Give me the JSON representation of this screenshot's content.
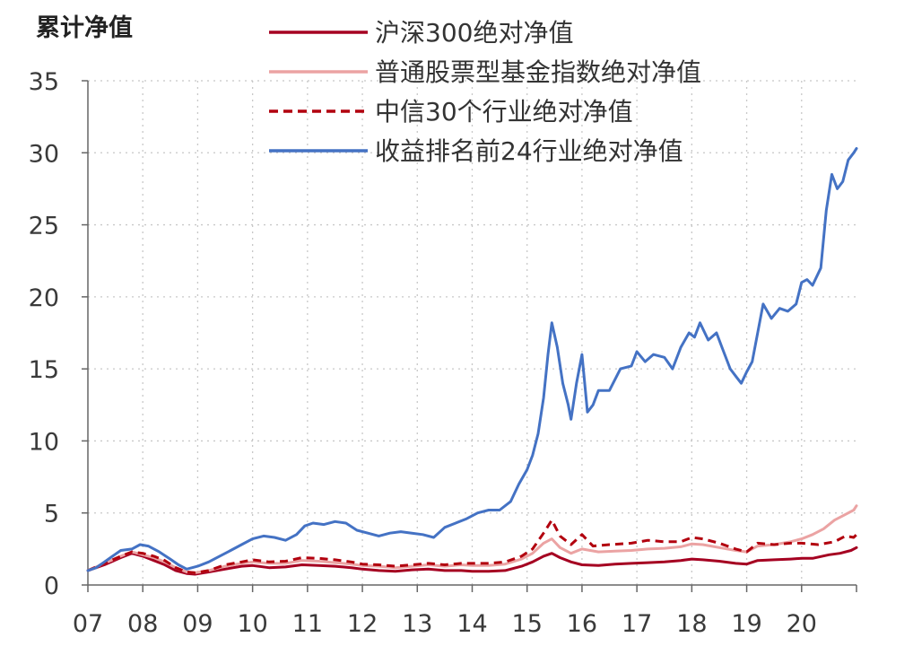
{
  "chart_data": {
    "type": "line",
    "ylabel": "累计净值",
    "ylim": [
      0,
      35
    ],
    "yticks": [
      0,
      5,
      10,
      15,
      20,
      25,
      30,
      35
    ],
    "xlim": [
      2007,
      2021
    ],
    "xticks": [
      {
        "value": 2007,
        "label": "07"
      },
      {
        "value": 2008,
        "label": "08"
      },
      {
        "value": 2009,
        "label": "09"
      },
      {
        "value": 2010,
        "label": "10"
      },
      {
        "value": 2011,
        "label": "11"
      },
      {
        "value": 2012,
        "label": "12"
      },
      {
        "value": 2013,
        "label": "13"
      },
      {
        "value": 2014,
        "label": "14"
      },
      {
        "value": 2015,
        "label": "15"
      },
      {
        "value": 2016,
        "label": "16"
      },
      {
        "value": 2017,
        "label": "17"
      },
      {
        "value": 2018,
        "label": "18"
      },
      {
        "value": 2019,
        "label": "19"
      },
      {
        "value": 2020,
        "label": "20"
      }
    ],
    "grid": true,
    "legend_position": "top",
    "series": [
      {
        "name": "沪深300绝对净值",
        "color": "#a50021",
        "dash": "solid",
        "points": [
          [
            2007.0,
            1.0
          ],
          [
            2007.3,
            1.4
          ],
          [
            2007.6,
            1.9
          ],
          [
            2007.8,
            2.2
          ],
          [
            2008.0,
            2.0
          ],
          [
            2008.2,
            1.7
          ],
          [
            2008.4,
            1.4
          ],
          [
            2008.6,
            1.0
          ],
          [
            2008.8,
            0.8
          ],
          [
            2008.95,
            0.75
          ],
          [
            2009.2,
            0.9
          ],
          [
            2009.5,
            1.1
          ],
          [
            2009.8,
            1.3
          ],
          [
            2010.0,
            1.35
          ],
          [
            2010.3,
            1.2
          ],
          [
            2010.6,
            1.25
          ],
          [
            2010.9,
            1.4
          ],
          [
            2011.2,
            1.35
          ],
          [
            2011.5,
            1.3
          ],
          [
            2011.8,
            1.2
          ],
          [
            2012.0,
            1.1
          ],
          [
            2012.3,
            1.0
          ],
          [
            2012.6,
            0.95
          ],
          [
            2012.9,
            1.05
          ],
          [
            2013.2,
            1.1
          ],
          [
            2013.5,
            1.0
          ],
          [
            2013.8,
            1.0
          ],
          [
            2014.0,
            0.95
          ],
          [
            2014.3,
            0.95
          ],
          [
            2014.6,
            1.0
          ],
          [
            2014.9,
            1.3
          ],
          [
            2015.1,
            1.6
          ],
          [
            2015.3,
            2.0
          ],
          [
            2015.45,
            2.2
          ],
          [
            2015.6,
            1.9
          ],
          [
            2015.8,
            1.6
          ],
          [
            2016.0,
            1.4
          ],
          [
            2016.3,
            1.35
          ],
          [
            2016.6,
            1.45
          ],
          [
            2016.9,
            1.5
          ],
          [
            2017.2,
            1.55
          ],
          [
            2017.5,
            1.6
          ],
          [
            2017.8,
            1.7
          ],
          [
            2018.0,
            1.8
          ],
          [
            2018.2,
            1.75
          ],
          [
            2018.5,
            1.65
          ],
          [
            2018.8,
            1.5
          ],
          [
            2019.0,
            1.45
          ],
          [
            2019.2,
            1.7
          ],
          [
            2019.5,
            1.75
          ],
          [
            2019.8,
            1.8
          ],
          [
            2020.0,
            1.85
          ],
          [
            2020.2,
            1.85
          ],
          [
            2020.5,
            2.1
          ],
          [
            2020.7,
            2.2
          ],
          [
            2020.9,
            2.4
          ],
          [
            2021.0,
            2.6
          ]
        ]
      },
      {
        "name": "普通股票型基金指数绝对净值",
        "color": "#eba3a3",
        "dash": "solid",
        "points": [
          [
            2007.0,
            1.0
          ],
          [
            2007.3,
            1.5
          ],
          [
            2007.6,
            2.0
          ],
          [
            2007.8,
            2.3
          ],
          [
            2008.0,
            2.1
          ],
          [
            2008.2,
            1.9
          ],
          [
            2008.4,
            1.6
          ],
          [
            2008.6,
            1.2
          ],
          [
            2008.8,
            0.9
          ],
          [
            2008.95,
            0.85
          ],
          [
            2009.2,
            1.0
          ],
          [
            2009.5,
            1.3
          ],
          [
            2009.8,
            1.5
          ],
          [
            2010.0,
            1.6
          ],
          [
            2010.3,
            1.5
          ],
          [
            2010.6,
            1.5
          ],
          [
            2010.9,
            1.7
          ],
          [
            2011.2,
            1.65
          ],
          [
            2011.5,
            1.55
          ],
          [
            2011.8,
            1.45
          ],
          [
            2012.0,
            1.35
          ],
          [
            2012.3,
            1.3
          ],
          [
            2012.6,
            1.2
          ],
          [
            2012.9,
            1.3
          ],
          [
            2013.2,
            1.4
          ],
          [
            2013.5,
            1.3
          ],
          [
            2013.8,
            1.4
          ],
          [
            2014.0,
            1.35
          ],
          [
            2014.3,
            1.35
          ],
          [
            2014.6,
            1.45
          ],
          [
            2014.9,
            1.8
          ],
          [
            2015.1,
            2.2
          ],
          [
            2015.3,
            2.9
          ],
          [
            2015.45,
            3.2
          ],
          [
            2015.6,
            2.6
          ],
          [
            2015.8,
            2.2
          ],
          [
            2016.0,
            2.5
          ],
          [
            2016.3,
            2.3
          ],
          [
            2016.6,
            2.35
          ],
          [
            2016.9,
            2.4
          ],
          [
            2017.2,
            2.5
          ],
          [
            2017.5,
            2.55
          ],
          [
            2017.8,
            2.65
          ],
          [
            2018.0,
            2.85
          ],
          [
            2018.2,
            2.8
          ],
          [
            2018.5,
            2.6
          ],
          [
            2018.8,
            2.4
          ],
          [
            2019.0,
            2.3
          ],
          [
            2019.2,
            2.7
          ],
          [
            2019.5,
            2.8
          ],
          [
            2019.8,
            3.0
          ],
          [
            2020.0,
            3.2
          ],
          [
            2020.2,
            3.5
          ],
          [
            2020.4,
            3.9
          ],
          [
            2020.6,
            4.5
          ],
          [
            2020.8,
            4.9
          ],
          [
            2020.95,
            5.2
          ],
          [
            2021.0,
            5.5
          ]
        ]
      },
      {
        "name": "中信30个行业绝对净值",
        "color": "#b2000e",
        "dash": "dashed",
        "points": [
          [
            2007.0,
            1.0
          ],
          [
            2007.3,
            1.5
          ],
          [
            2007.6,
            2.0
          ],
          [
            2007.8,
            2.3
          ],
          [
            2008.0,
            2.2
          ],
          [
            2008.2,
            2.0
          ],
          [
            2008.4,
            1.7
          ],
          [
            2008.6,
            1.2
          ],
          [
            2008.8,
            0.9
          ],
          [
            2008.95,
            0.85
          ],
          [
            2009.2,
            1.0
          ],
          [
            2009.5,
            1.4
          ],
          [
            2009.8,
            1.6
          ],
          [
            2010.0,
            1.75
          ],
          [
            2010.3,
            1.6
          ],
          [
            2010.6,
            1.65
          ],
          [
            2010.9,
            1.9
          ],
          [
            2011.2,
            1.85
          ],
          [
            2011.5,
            1.75
          ],
          [
            2011.8,
            1.6
          ],
          [
            2012.0,
            1.45
          ],
          [
            2012.3,
            1.4
          ],
          [
            2012.6,
            1.3
          ],
          [
            2012.9,
            1.4
          ],
          [
            2013.2,
            1.5
          ],
          [
            2013.5,
            1.4
          ],
          [
            2013.8,
            1.5
          ],
          [
            2014.0,
            1.5
          ],
          [
            2014.3,
            1.5
          ],
          [
            2014.6,
            1.6
          ],
          [
            2014.9,
            2.0
          ],
          [
            2015.1,
            2.5
          ],
          [
            2015.3,
            3.6
          ],
          [
            2015.45,
            4.5
          ],
          [
            2015.6,
            3.4
          ],
          [
            2015.8,
            2.8
          ],
          [
            2016.0,
            3.5
          ],
          [
            2016.2,
            2.7
          ],
          [
            2016.5,
            2.8
          ],
          [
            2016.9,
            2.9
          ],
          [
            2017.2,
            3.1
          ],
          [
            2017.5,
            3.0
          ],
          [
            2017.8,
            3.0
          ],
          [
            2018.0,
            3.3
          ],
          [
            2018.2,
            3.2
          ],
          [
            2018.5,
            2.9
          ],
          [
            2018.8,
            2.5
          ],
          [
            2019.0,
            2.3
          ],
          [
            2019.2,
            2.9
          ],
          [
            2019.5,
            2.8
          ],
          [
            2019.8,
            2.9
          ],
          [
            2020.0,
            2.9
          ],
          [
            2020.3,
            2.8
          ],
          [
            2020.6,
            3.0
          ],
          [
            2020.8,
            3.4
          ],
          [
            2020.95,
            3.3
          ],
          [
            2021.0,
            3.5
          ]
        ]
      },
      {
        "name": "收益排名前24行业绝对净值",
        "color": "#4472c4",
        "dash": "solid",
        "points": [
          [
            2007.0,
            1.0
          ],
          [
            2007.15,
            1.2
          ],
          [
            2007.3,
            1.6
          ],
          [
            2007.45,
            2.0
          ],
          [
            2007.6,
            2.4
          ],
          [
            2007.8,
            2.5
          ],
          [
            2007.95,
            2.8
          ],
          [
            2008.1,
            2.7
          ],
          [
            2008.3,
            2.3
          ],
          [
            2008.5,
            1.8
          ],
          [
            2008.65,
            1.4
          ],
          [
            2008.8,
            1.1
          ],
          [
            2009.0,
            1.3
          ],
          [
            2009.2,
            1.6
          ],
          [
            2009.4,
            2.0
          ],
          [
            2009.6,
            2.4
          ],
          [
            2009.8,
            2.8
          ],
          [
            2010.0,
            3.2
          ],
          [
            2010.2,
            3.4
          ],
          [
            2010.4,
            3.3
          ],
          [
            2010.6,
            3.1
          ],
          [
            2010.8,
            3.5
          ],
          [
            2010.95,
            4.1
          ],
          [
            2011.1,
            4.3
          ],
          [
            2011.3,
            4.2
          ],
          [
            2011.5,
            4.4
          ],
          [
            2011.7,
            4.3
          ],
          [
            2011.9,
            3.8
          ],
          [
            2012.1,
            3.6
          ],
          [
            2012.3,
            3.4
          ],
          [
            2012.5,
            3.6
          ],
          [
            2012.7,
            3.7
          ],
          [
            2012.9,
            3.6
          ],
          [
            2013.1,
            3.5
          ],
          [
            2013.3,
            3.3
          ],
          [
            2013.5,
            4.0
          ],
          [
            2013.7,
            4.3
          ],
          [
            2013.9,
            4.6
          ],
          [
            2014.1,
            5.0
          ],
          [
            2014.3,
            5.2
          ],
          [
            2014.5,
            5.2
          ],
          [
            2014.7,
            5.8
          ],
          [
            2014.85,
            7.0
          ],
          [
            2015.0,
            8.0
          ],
          [
            2015.1,
            9.0
          ],
          [
            2015.2,
            10.5
          ],
          [
            2015.3,
            13.0
          ],
          [
            2015.38,
            16.0
          ],
          [
            2015.45,
            18.2
          ],
          [
            2015.55,
            16.5
          ],
          [
            2015.65,
            14.0
          ],
          [
            2015.75,
            12.5
          ],
          [
            2015.8,
            11.5
          ],
          [
            2015.9,
            14.0
          ],
          [
            2016.0,
            16.0
          ],
          [
            2016.1,
            12.0
          ],
          [
            2016.2,
            12.5
          ],
          [
            2016.3,
            13.5
          ],
          [
            2016.5,
            13.5
          ],
          [
            2016.7,
            15.0
          ],
          [
            2016.9,
            15.2
          ],
          [
            2017.0,
            16.2
          ],
          [
            2017.15,
            15.5
          ],
          [
            2017.3,
            16.0
          ],
          [
            2017.5,
            15.8
          ],
          [
            2017.65,
            15.0
          ],
          [
            2017.8,
            16.5
          ],
          [
            2017.95,
            17.5
          ],
          [
            2018.05,
            17.2
          ],
          [
            2018.15,
            18.2
          ],
          [
            2018.3,
            17.0
          ],
          [
            2018.45,
            17.5
          ],
          [
            2018.55,
            16.5
          ],
          [
            2018.7,
            15.0
          ],
          [
            2018.8,
            14.5
          ],
          [
            2018.9,
            14.0
          ],
          [
            2019.0,
            14.8
          ],
          [
            2019.1,
            15.5
          ],
          [
            2019.2,
            17.5
          ],
          [
            2019.3,
            19.5
          ],
          [
            2019.45,
            18.5
          ],
          [
            2019.6,
            19.2
          ],
          [
            2019.75,
            19.0
          ],
          [
            2019.9,
            19.5
          ],
          [
            2020.0,
            21.0
          ],
          [
            2020.1,
            21.2
          ],
          [
            2020.2,
            20.8
          ],
          [
            2020.35,
            22.0
          ],
          [
            2020.45,
            26.0
          ],
          [
            2020.55,
            28.5
          ],
          [
            2020.65,
            27.5
          ],
          [
            2020.75,
            28.0
          ],
          [
            2020.85,
            29.5
          ],
          [
            2020.95,
            30.0
          ],
          [
            2021.0,
            30.3
          ]
        ]
      }
    ]
  }
}
